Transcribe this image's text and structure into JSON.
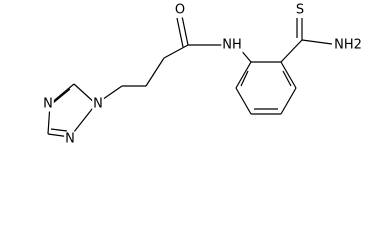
{
  "atoms": {
    "oxygen": "O",
    "amide_nitrogen": "NH",
    "sulfur": "S",
    "amine": "NH2",
    "triazole_n1": "N",
    "triazole_n2": "N",
    "triazole_n4": "N"
  }
}
